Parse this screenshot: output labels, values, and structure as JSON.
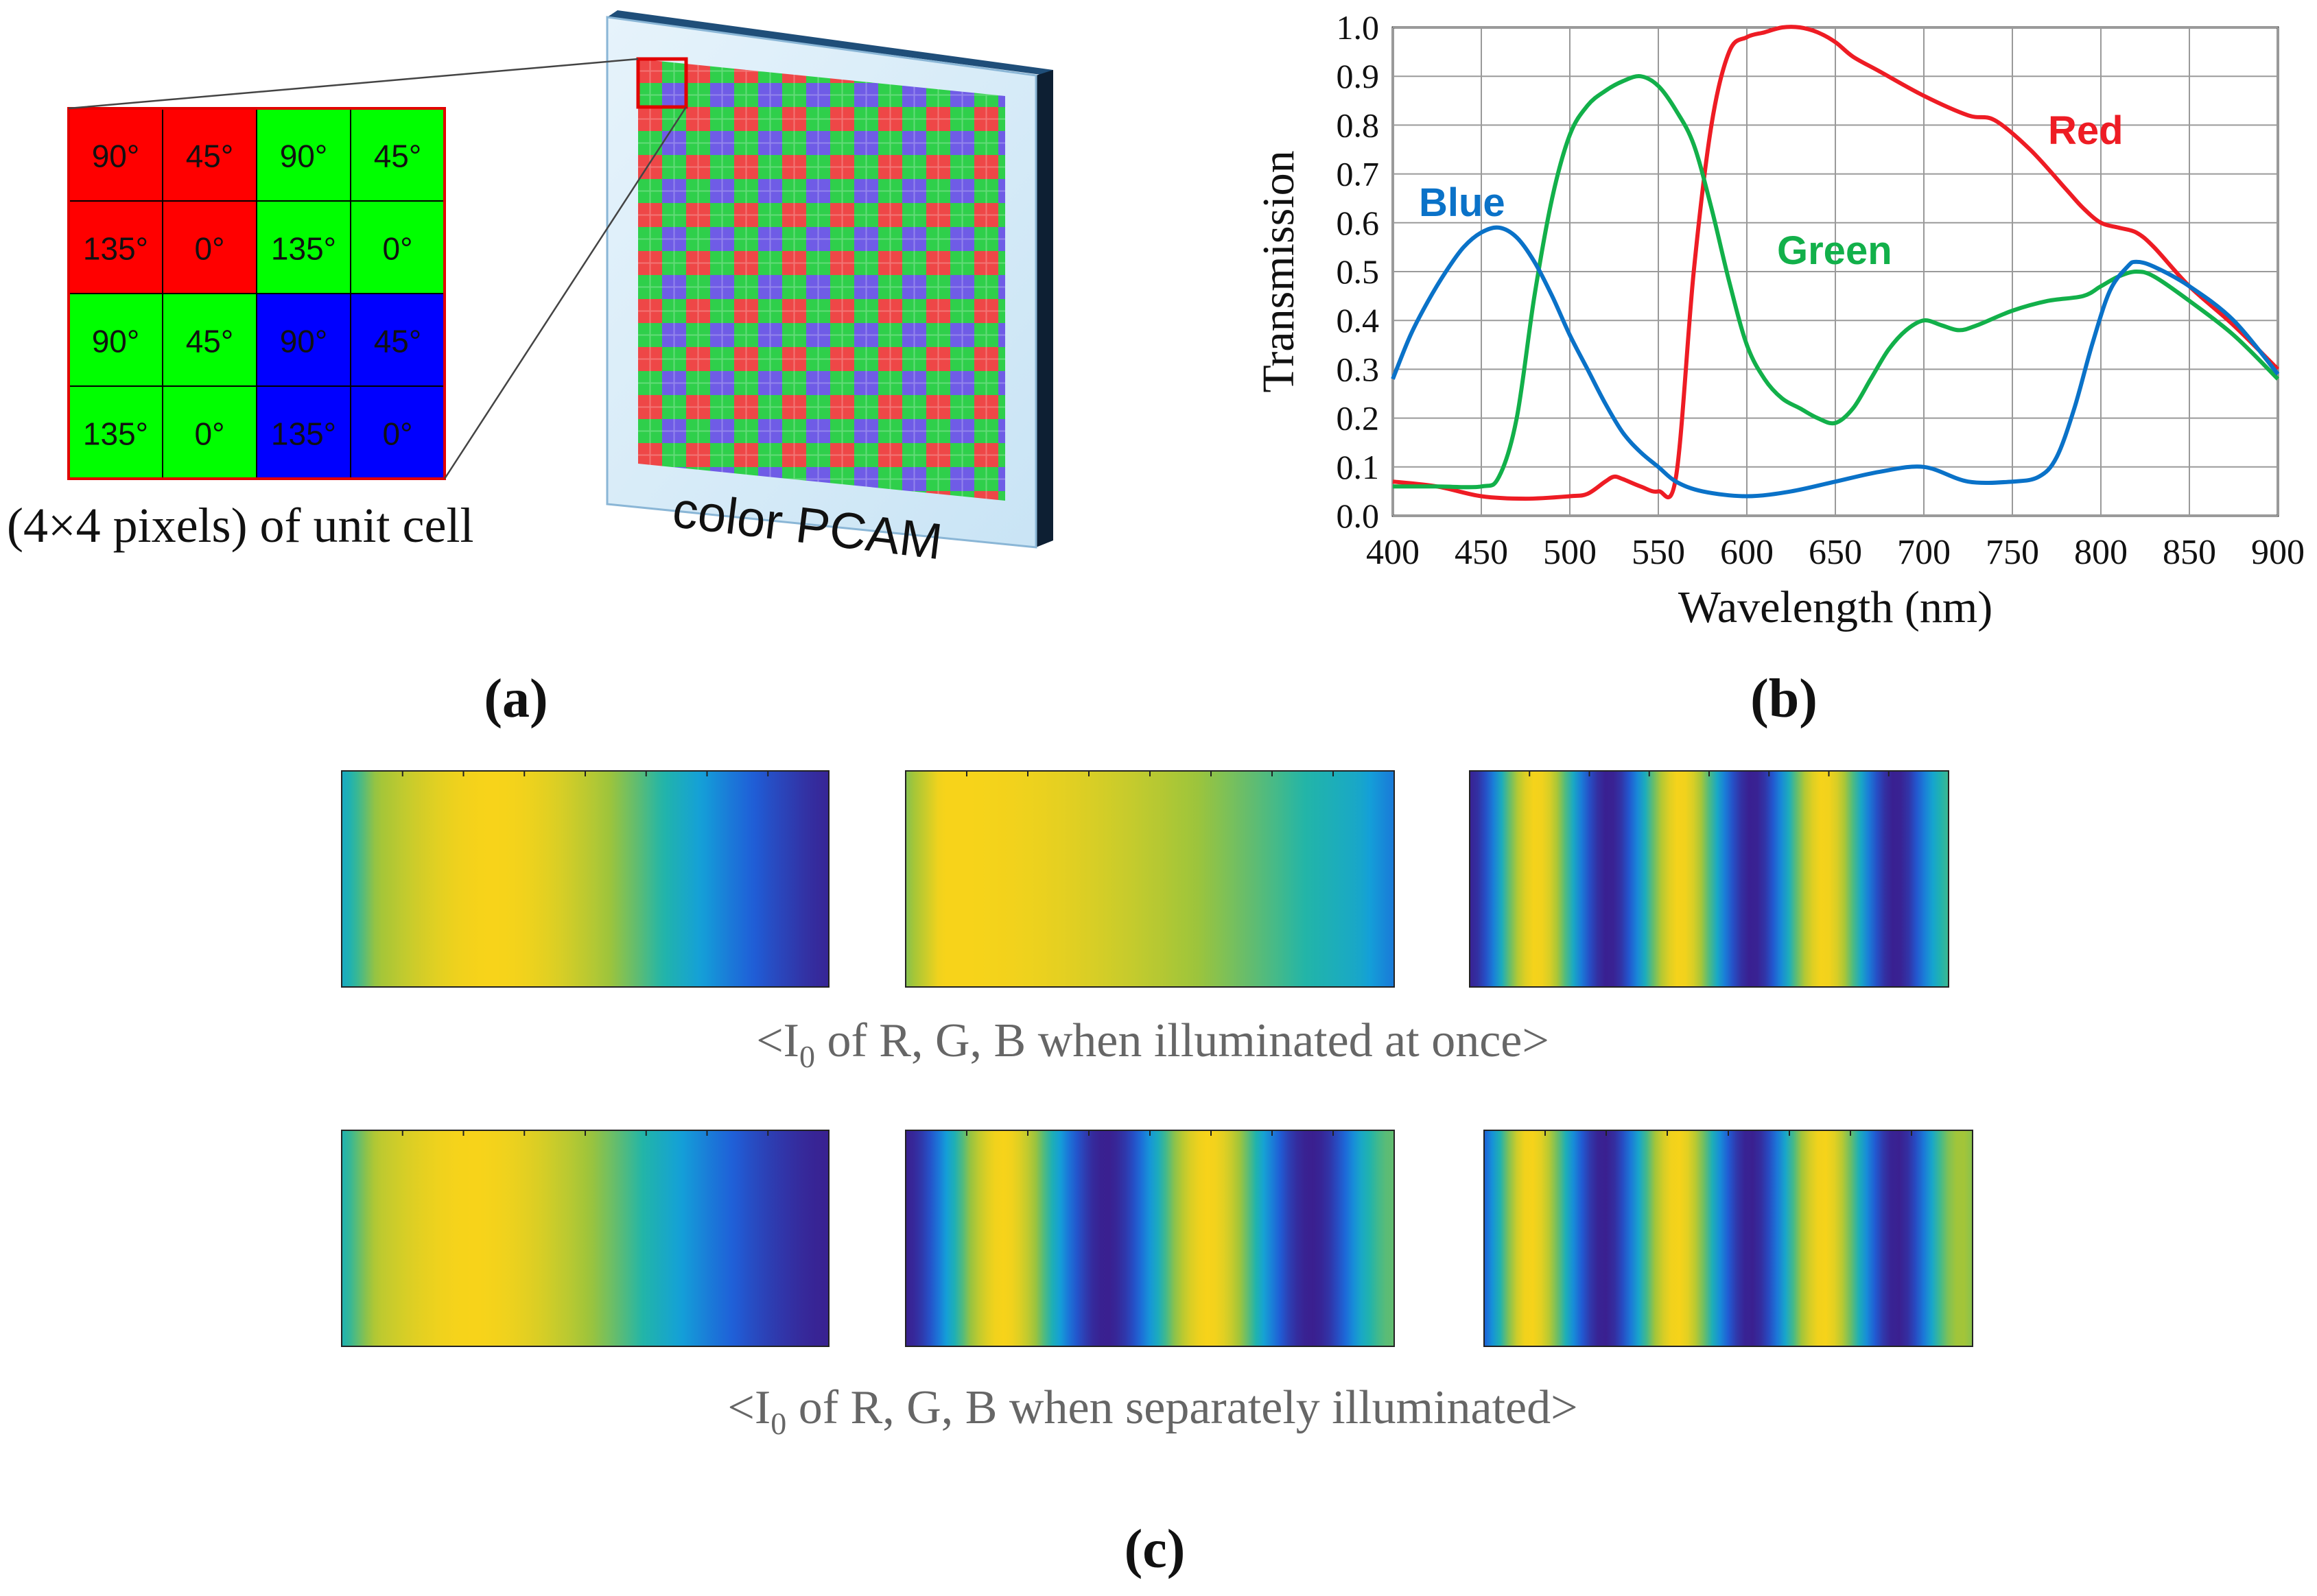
{
  "panel_a": {
    "unit_cell": [
      [
        {
          "angle": "90°",
          "color": "red"
        },
        {
          "angle": "45°",
          "color": "red"
        },
        {
          "angle": "90°",
          "color": "green"
        },
        {
          "angle": "45°",
          "color": "green"
        }
      ],
      [
        {
          "angle": "135°",
          "color": "red"
        },
        {
          "angle": "0°",
          "color": "red"
        },
        {
          "angle": "135°",
          "color": "green"
        },
        {
          "angle": "0°",
          "color": "green"
        }
      ],
      [
        {
          "angle": "90°",
          "color": "green"
        },
        {
          "angle": "45°",
          "color": "green"
        },
        {
          "angle": "90°",
          "color": "blue"
        },
        {
          "angle": "45°",
          "color": "blue"
        }
      ],
      [
        {
          "angle": "135°",
          "color": "green"
        },
        {
          "angle": "0°",
          "color": "green"
        },
        {
          "angle": "135°",
          "color": "blue"
        },
        {
          "angle": "0°",
          "color": "blue"
        }
      ]
    ],
    "unit_cell_caption": "(4×4 pixels) of unit cell",
    "sensor_caption": "color PCAM",
    "label": "(a)"
  },
  "panel_b": {
    "label": "(b)",
    "chart_data": {
      "type": "line",
      "xlabel": "Wavelength (nm)",
      "ylabel": "Transmission",
      "xlim": [
        400,
        900
      ],
      "ylim": [
        0,
        1
      ],
      "x_ticks": [
        "400",
        "450",
        "500",
        "550",
        "600",
        "650",
        "700",
        "750",
        "800",
        "850",
        "900"
      ],
      "y_ticks": [
        "0.0",
        "0.1",
        "0.2",
        "0.3",
        "0.4",
        "0.5",
        "0.6",
        "0.7",
        "0.8",
        "0.9",
        "1.0"
      ],
      "grid": true,
      "series": [
        {
          "name": "Red",
          "color": "#ee1c24",
          "x": [
            400,
            425,
            450,
            475,
            500,
            510,
            520,
            525,
            530,
            540,
            550,
            560,
            570,
            580,
            590,
            600,
            610,
            620,
            630,
            640,
            650,
            660,
            675,
            700,
            725,
            740,
            760,
            780,
            790,
            800,
            810,
            820,
            830,
            850,
            875,
            900
          ],
          "y": [
            0.07,
            0.06,
            0.04,
            0.035,
            0.04,
            0.045,
            0.07,
            0.08,
            0.075,
            0.06,
            0.05,
            0.08,
            0.5,
            0.8,
            0.95,
            0.98,
            0.99,
            1.0,
            1.0,
            0.99,
            0.97,
            0.94,
            0.91,
            0.86,
            0.82,
            0.81,
            0.75,
            0.67,
            0.63,
            0.6,
            0.59,
            0.58,
            0.55,
            0.47,
            0.39,
            0.3
          ]
        },
        {
          "name": "Green",
          "color": "#12b04a",
          "x": [
            400,
            425,
            450,
            460,
            470,
            480,
            490,
            500,
            510,
            520,
            530,
            540,
            550,
            560,
            570,
            580,
            590,
            600,
            610,
            620,
            630,
            640,
            650,
            660,
            670,
            680,
            690,
            700,
            710,
            720,
            730,
            750,
            770,
            790,
            800,
            810,
            820,
            830,
            850,
            875,
            900
          ],
          "y": [
            0.06,
            0.06,
            0.06,
            0.08,
            0.2,
            0.45,
            0.65,
            0.78,
            0.84,
            0.87,
            0.89,
            0.9,
            0.88,
            0.83,
            0.76,
            0.63,
            0.48,
            0.35,
            0.28,
            0.24,
            0.22,
            0.2,
            0.19,
            0.22,
            0.28,
            0.34,
            0.38,
            0.4,
            0.39,
            0.38,
            0.39,
            0.42,
            0.44,
            0.45,
            0.47,
            0.49,
            0.5,
            0.49,
            0.44,
            0.37,
            0.28
          ]
        },
        {
          "name": "Blue",
          "color": "#0a72c8",
          "x": [
            400,
            410,
            420,
            430,
            440,
            450,
            460,
            470,
            480,
            490,
            500,
            510,
            520,
            530,
            540,
            550,
            560,
            575,
            600,
            625,
            650,
            675,
            700,
            725,
            750,
            765,
            775,
            785,
            795,
            805,
            815,
            820,
            830,
            850,
            875,
            900
          ],
          "y": [
            0.28,
            0.37,
            0.44,
            0.5,
            0.55,
            0.58,
            0.59,
            0.57,
            0.52,
            0.45,
            0.37,
            0.3,
            0.23,
            0.17,
            0.13,
            0.1,
            0.07,
            0.05,
            0.04,
            0.05,
            0.07,
            0.09,
            0.1,
            0.07,
            0.07,
            0.08,
            0.12,
            0.22,
            0.35,
            0.46,
            0.51,
            0.52,
            0.51,
            0.47,
            0.4,
            0.29
          ]
        }
      ]
    }
  },
  "panel_c": {
    "label": "(c)",
    "caption_top_prefix": "<I",
    "caption_top_sub": "0",
    "caption_top_suffix": " of R, G, B when illuminated at once>",
    "caption_bottom_prefix": "<I",
    "caption_bottom_sub": "0",
    "caption_bottom_suffix": " of R, G, B when separately illuminated>",
    "images": [
      {
        "row": 0,
        "col": 0,
        "fringe_period": 1.55,
        "fringe_phase": 0.31
      },
      {
        "row": 0,
        "col": 1,
        "fringe_period": 3.2,
        "fringe_phase": 0.1
      },
      {
        "row": 0,
        "col": 2,
        "fringe_period": 0.3,
        "fringe_phase": 0.14
      },
      {
        "row": 1,
        "col": 0,
        "fringe_period": 1.55,
        "fringe_phase": 0.27
      },
      {
        "row": 1,
        "col": 1,
        "fringe_period": 0.42,
        "fringe_phase": 0.2
      },
      {
        "row": 1,
        "col": 2,
        "fringe_period": 0.3,
        "fringe_phase": 0.095
      }
    ]
  }
}
